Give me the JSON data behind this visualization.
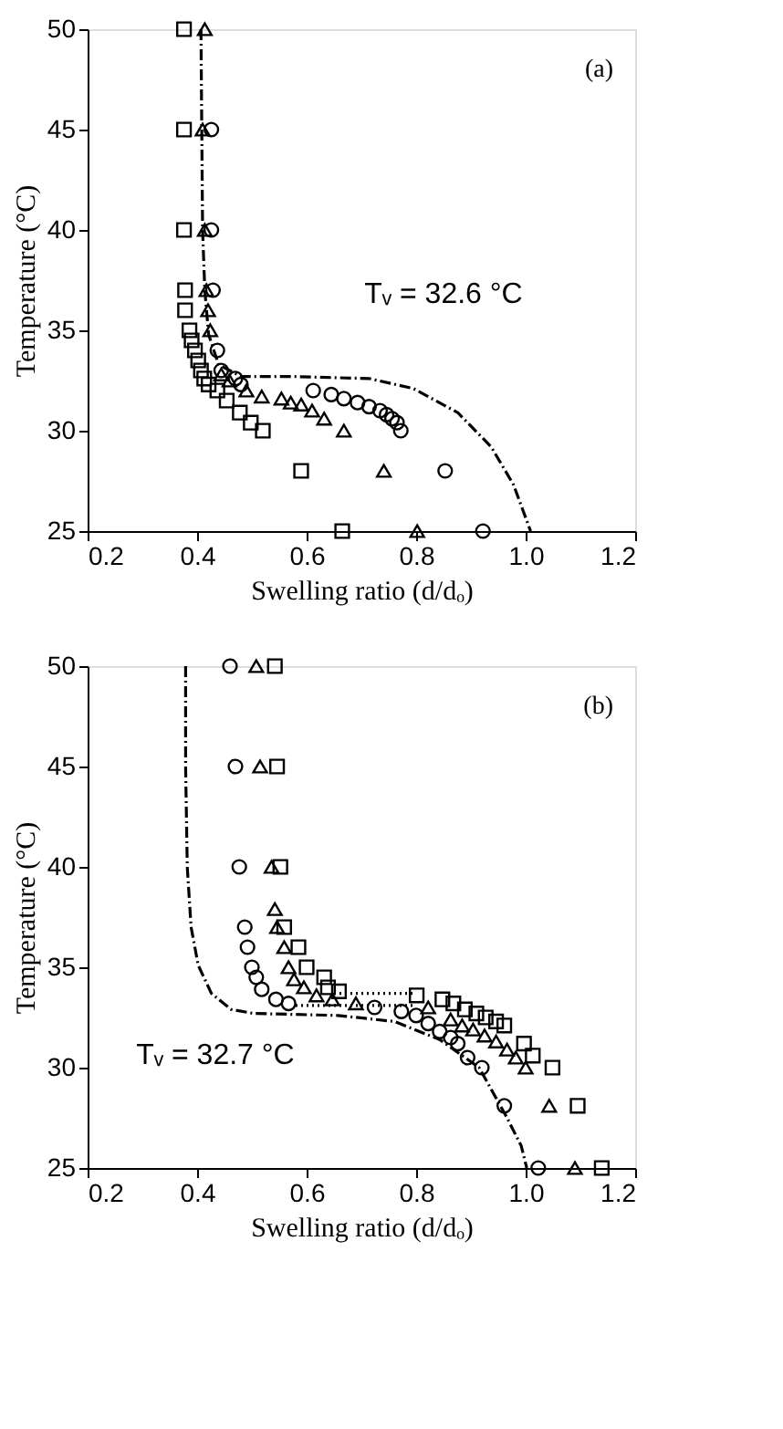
{
  "chart_data": [
    {
      "type": "scatter",
      "xlabel": "Swelling ratio (d/dₒ)",
      "ylabel": "Temperature (°C)",
      "xlim": [
        0.2,
        1.2
      ],
      "ylim": [
        25,
        50
      ],
      "xticks": [
        0.2,
        0.4,
        0.6,
        0.8,
        {
          "value": 1,
          "label": "1.0"
        },
        1.2
      ],
      "yticks": [
        25,
        30,
        35,
        40,
        45,
        50
      ],
      "grid": false,
      "annotations": [
        "(a)",
        "Tᵥ = 32.6 °C"
      ],
      "series": [
        {
          "type": "line",
          "color": "#000000",
          "marker": "none",
          "line_style": "dashed",
          "x": [
            0.407,
            0.41,
            0.414,
            0.421,
            0.439,
            0.48,
            0.571,
            0.714,
            0.795,
            0.876,
            0.937,
            0.978,
            1.009
          ],
          "values": [
            50,
            40,
            37,
            34.8,
            33.3,
            32.7,
            32.7,
            32.6,
            32.1,
            30.9,
            29.2,
            27.3,
            25
          ]
        },
        {
          "color": "#000000",
          "marker": "square",
          "x": [
            0.376,
            0.376,
            0.376,
            0.378,
            0.378,
            0.386,
            0.39,
            0.396,
            0.402,
            0.407,
            0.413,
            0.421,
            0.437,
            0.454,
            0.478,
            0.498,
            0.52,
            0.59,
            0.665
          ],
          "values": [
            50,
            45,
            40,
            37,
            36,
            35,
            34.5,
            34,
            33.5,
            33,
            32.6,
            32.3,
            32,
            31.5,
            30.9,
            30.4,
            30,
            28,
            25
          ]
        },
        {
          "color": "#000000",
          "marker": "triangle",
          "x": [
            0.414,
            0.41,
            0.414,
            0.417,
            0.42,
            0.424,
            0.444,
            0.459,
            0.49,
            0.518,
            0.554,
            0.571,
            0.59,
            0.61,
            0.632,
            0.668,
            0.741,
            0.802
          ],
          "values": [
            50,
            45,
            40,
            37,
            36,
            35,
            32.8,
            32.5,
            32,
            31.7,
            31.6,
            31.4,
            31.3,
            31,
            30.6,
            30,
            28,
            25
          ]
        },
        {
          "color": "#000000",
          "marker": "circle",
          "x": [
            0.426,
            0.426,
            0.429,
            0.437,
            0.444,
            0.47,
            0.48,
            0.612,
            0.645,
            0.668,
            0.693,
            0.714,
            0.734,
            0.746,
            0.756,
            0.765,
            0.772,
            0.853,
            0.922
          ],
          "values": [
            45,
            40,
            37,
            34,
            33,
            32.6,
            32.3,
            32,
            31.8,
            31.6,
            31.4,
            31.2,
            31,
            30.8,
            30.6,
            30.4,
            30,
            28,
            25
          ]
        }
      ]
    },
    {
      "type": "scatter",
      "xlabel": "Swelling ratio (d/dₒ)",
      "ylabel": "Temperature (°C)",
      "xlim": [
        0.2,
        1.2
      ],
      "ylim": [
        25,
        50
      ],
      "xticks": [
        0.2,
        0.4,
        0.6,
        0.8,
        {
          "value": 1,
          "label": "1.0"
        },
        1.2
      ],
      "yticks": [
        25,
        30,
        35,
        40,
        45,
        50
      ],
      "grid": false,
      "annotations": [
        "(b)",
        "Tᵥ = 32.7 °C"
      ],
      "series": [
        {
          "type": "line",
          "color": "#000000",
          "marker": "none",
          "line_style": "dashed",
          "x": [
            0.379,
            0.379,
            0.382,
            0.389,
            0.402,
            0.426,
            0.462,
            0.503,
            0.657,
            0.76,
            0.843,
            0.915,
            0.966,
            0.992,
            1.002
          ],
          "values": [
            50,
            45,
            40,
            37,
            35.1,
            33.7,
            32.9,
            32.7,
            32.6,
            32.3,
            31.4,
            30,
            27.5,
            26.1,
            25
          ]
        },
        {
          "type": "line",
          "color": "#000000",
          "marker": "none",
          "line_style": "dotted",
          "x": [
            0.66,
            0.8
          ],
          "values": [
            33.7,
            33.7
          ]
        },
        {
          "type": "line",
          "color": "#000000",
          "marker": "none",
          "line_style": "dotted",
          "x": [
            0.58,
            0.8
          ],
          "values": [
            33.1,
            33.1
          ]
        },
        {
          "color": "#000000",
          "marker": "circle",
          "x": [
            0.46,
            0.47,
            0.477,
            0.487,
            0.492,
            0.5,
            0.508,
            0.518,
            0.544,
            0.567,
            0.724,
            0.773,
            0.8,
            0.822,
            0.843,
            0.863,
            0.876,
            0.894,
            0.92,
            0.961,
            1.023
          ],
          "values": [
            50,
            45,
            40,
            37,
            36,
            35,
            34.5,
            33.9,
            33.4,
            33.2,
            33,
            32.8,
            32.6,
            32.2,
            31.8,
            31.5,
            31.2,
            30.5,
            30,
            28.1,
            25
          ]
        },
        {
          "color": "#000000",
          "marker": "triangle",
          "x": [
            0.508,
            0.515,
            0.536,
            0.542,
            0.546,
            0.559,
            0.567,
            0.577,
            0.595,
            0.618,
            0.647,
            0.69,
            0.822,
            0.863,
            0.884,
            0.904,
            0.925,
            0.946,
            0.966,
            0.982,
            1.0,
            1.043,
            1.09
          ],
          "values": [
            50,
            45,
            40,
            37.9,
            37,
            36,
            35,
            34.4,
            34,
            33.6,
            33.4,
            33.2,
            33,
            32.4,
            32.1,
            31.9,
            31.6,
            31.3,
            30.9,
            30.5,
            30,
            28.1,
            25
          ]
        },
        {
          "color": "#000000",
          "marker": "square",
          "x": [
            0.542,
            0.546,
            0.552,
            0.559,
            0.585,
            0.6,
            0.632,
            0.639,
            0.659,
            0.801,
            0.848,
            0.868,
            0.889,
            0.91,
            0.927,
            0.946,
            0.961,
            0.997,
            1.013,
            1.049,
            1.095,
            1.139
          ],
          "values": [
            50,
            45,
            40,
            37,
            36,
            35,
            34.5,
            34,
            33.8,
            33.6,
            33.4,
            33.2,
            32.9,
            32.7,
            32.5,
            32.3,
            32.1,
            31.2,
            30.6,
            30,
            28.1,
            25
          ]
        }
      ]
    }
  ]
}
